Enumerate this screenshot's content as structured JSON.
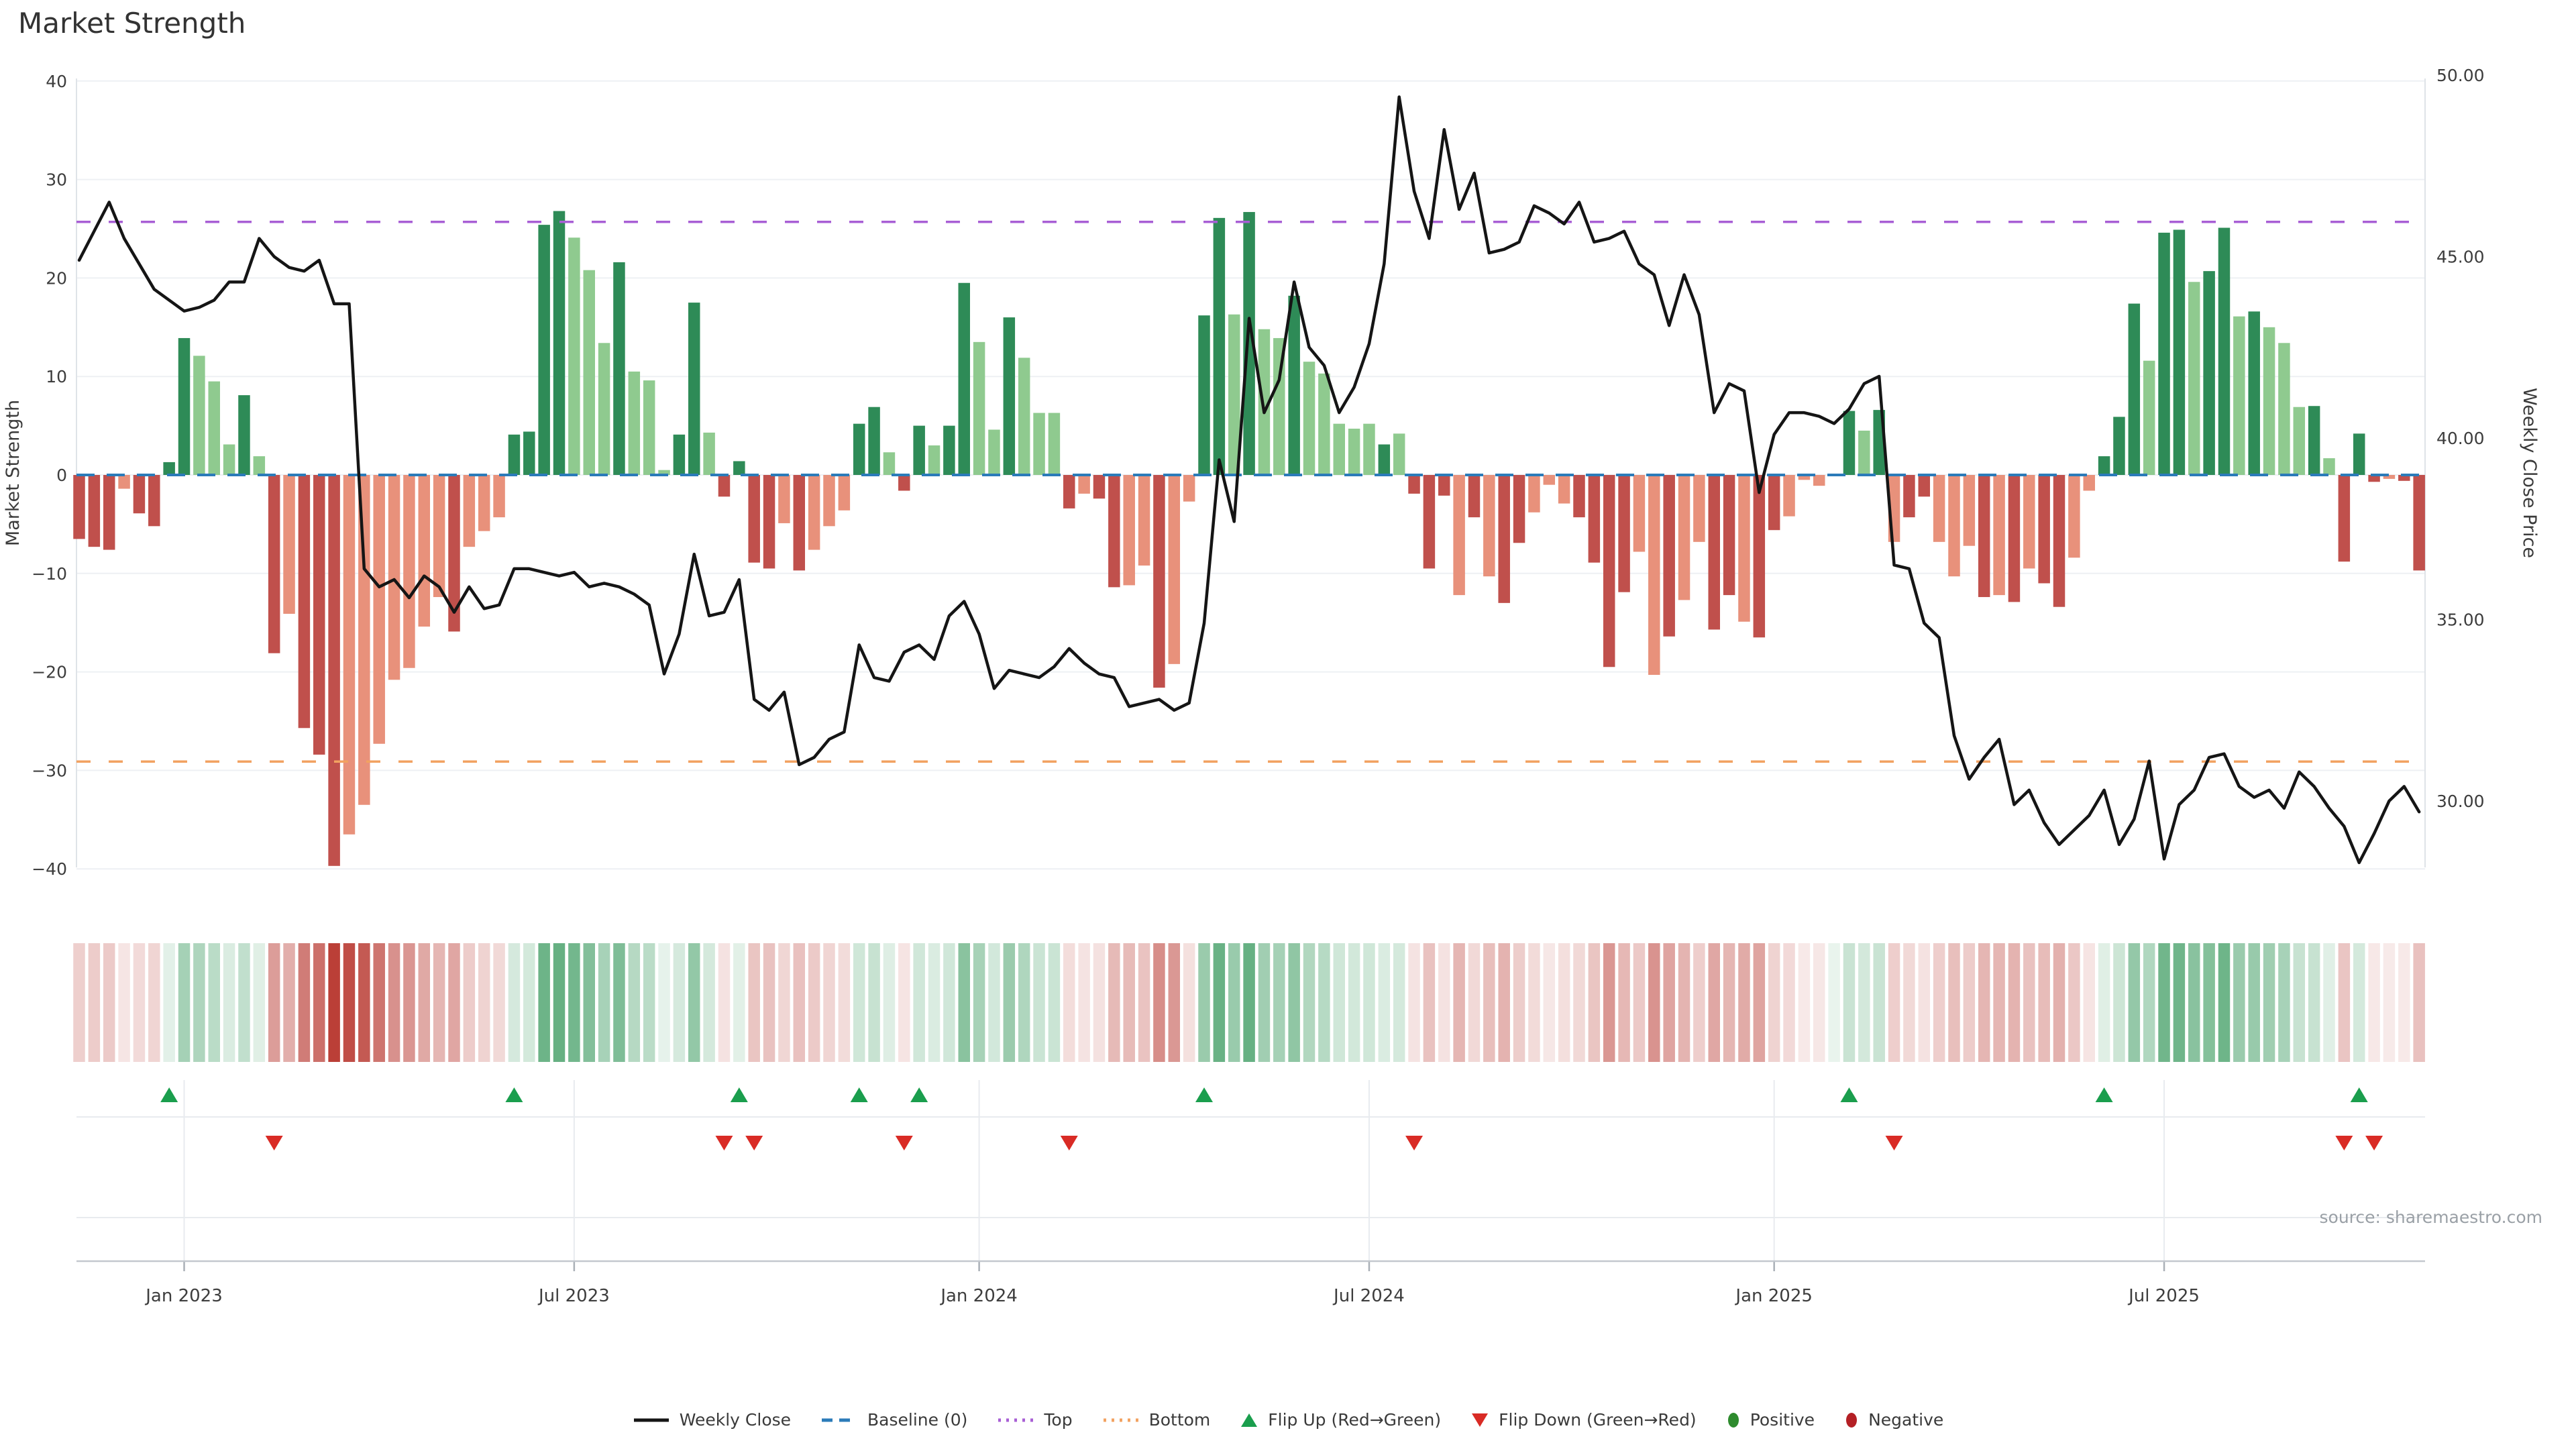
{
  "title": "Market Strength",
  "source": "source: sharemaestro.com",
  "axes": {
    "left": {
      "label": "Market Strength",
      "ticks": [
        40,
        30,
        20,
        10,
        0,
        -10,
        -20,
        -30,
        -40
      ]
    },
    "right": {
      "label": "Weekly Close Price",
      "ticks": [
        {
          "v": 50,
          "label": "50.00"
        },
        {
          "v": 45,
          "label": "45.00"
        },
        {
          "v": 40,
          "label": "40.00"
        },
        {
          "v": 35,
          "label": "35.00"
        },
        {
          "v": 30,
          "label": "30.00"
        }
      ]
    },
    "x": {
      "ticks": [
        {
          "label": "Jan 2023",
          "i": 7
        },
        {
          "label": "Jul 2023",
          "i": 33
        },
        {
          "label": "Jan 2024",
          "i": 60
        },
        {
          "label": "Jul 2024",
          "i": 86
        },
        {
          "label": "Jan 2025",
          "i": 113
        },
        {
          "label": "Jul 2025",
          "i": 139
        }
      ]
    }
  },
  "reference_lines": {
    "baseline": {
      "label": "Baseline (0)",
      "value": 0,
      "color": "#2b7bb9"
    },
    "top": {
      "label": "Top",
      "value": 25.7,
      "color": "#a85fd5"
    },
    "bottom": {
      "label": "Bottom",
      "value": -29.1,
      "color": "#f2a261"
    }
  },
  "colors": {
    "bar_pos_dark": "#2e8b57",
    "bar_pos_light": "#8fca8f",
    "bar_neg_dark": "#c0504c",
    "bar_neg_light": "#e8917b",
    "price_line": "#151515",
    "flip_up": "#1a9e4d",
    "flip_down": "#d92b25",
    "grid": "#eef0f4",
    "panel_grid": "#e8ebef",
    "axis": "#c3c8ce",
    "tick_text": "#3d3d3d",
    "heat_pos_base": "#218d4a",
    "heat_neg_base": "#b93a32"
  },
  "legend": [
    {
      "label": "Weekly Close",
      "glyph": "line",
      "color": "#151515"
    },
    {
      "label": "Baseline (0)",
      "glyph": "dashes",
      "color": "#2b7bb9"
    },
    {
      "label": "Top",
      "glyph": "dots",
      "color": "#a85fd5"
    },
    {
      "label": "Bottom",
      "glyph": "dots",
      "color": "#f2a261"
    },
    {
      "label": "Flip Up (Red→Green)",
      "glyph": "tri-up",
      "color": "#1a9e4d"
    },
    {
      "label": "Flip Down (Green→Red)",
      "glyph": "tri-down",
      "color": "#d92b25"
    },
    {
      "label": "Positive",
      "glyph": "dot",
      "color": "#2e8b2e"
    },
    {
      "label": "Negative",
      "glyph": "dot",
      "color": "#b42025"
    }
  ],
  "chart_data": {
    "type": "bar",
    "subtype": "bar+line dual-axis weekly",
    "title": "Market Strength",
    "ylabel_left": "Market Strength",
    "ylabel_right": "Weekly Close Price",
    "ylim_left": [
      -40.5,
      40.5
    ],
    "ylim_right": [
      28.2,
      50.0
    ],
    "grid": true,
    "legend_position": "bottom-center",
    "series": [
      {
        "name": "Market Strength",
        "type": "bar",
        "axis": "left",
        "values": [
          -6.5,
          -7.3,
          -7.6,
          -1.4,
          -3.9,
          -5.2,
          1.3,
          13.9,
          12.1,
          9.5,
          3.1,
          8.1,
          1.9,
          -18.1,
          -14.1,
          -25.7,
          -28.4,
          -39.7,
          -36.5,
          -33.5,
          -27.3,
          -20.8,
          -19.6,
          -15.4,
          -12.4,
          -15.9,
          -7.3,
          -5.7,
          -4.3,
          4.1,
          4.4,
          25.4,
          26.8,
          24.1,
          20.8,
          13.4,
          21.6,
          10.5,
          9.6,
          0.5,
          4.1,
          17.5,
          4.3,
          -2.2,
          1.4,
          -8.9,
          -9.5,
          -4.9,
          -9.7,
          -7.6,
          -5.2,
          -3.6,
          5.2,
          6.9,
          2.3,
          -1.6,
          5.0,
          3.0,
          5.0,
          19.5,
          13.5,
          4.6,
          16.0,
          11.9,
          6.3,
          6.3,
          -3.4,
          -1.9,
          -2.4,
          -11.4,
          -11.2,
          -9.2,
          -21.6,
          -19.2,
          -2.7,
          16.2,
          26.1,
          16.3,
          26.7,
          14.8,
          13.9,
          18.2,
          11.5,
          10.3,
          5.2,
          4.7,
          5.2,
          3.1,
          4.2,
          -1.9,
          -9.5,
          -2.1,
          -12.2,
          -4.3,
          -10.3,
          -13.0,
          -6.9,
          -3.8,
          -1.0,
          -2.9,
          -4.3,
          -8.9,
          -19.5,
          -11.9,
          -7.8,
          -20.3,
          -16.4,
          -12.7,
          -6.8,
          -15.7,
          -12.2,
          -14.9,
          -16.5,
          -5.6,
          -4.2,
          -0.5,
          -1.1,
          0.0,
          6.5,
          4.5,
          6.6,
          -6.8,
          -4.3,
          -2.2,
          -6.8,
          -10.3,
          -7.2,
          -12.4,
          -12.2,
          -12.9,
          -9.5,
          -11.0,
          -13.4,
          -8.4,
          -1.6,
          1.9,
          5.9,
          17.4,
          11.6,
          24.6,
          24.9,
          19.6,
          20.7,
          25.1,
          16.1,
          16.6,
          15.0,
          13.4,
          6.9,
          7.0,
          1.7,
          -8.8,
          4.2,
          -0.7,
          -0.4,
          -0.6,
          -9.7
        ],
        "shade": "DDDLDDDDLLLDLDLDDDLLLLLLLDLLLDDDDLLLDLLLDDLDDDDLDLLLDDLDDLDDLLDLLLDLDDLLDLLDDLDLLDLLLLLDLDDDLDLDDLLLDDDDLLDLLDDLDDLLLLDLDLDDLLLDLDLDDLLDDDLDDLDDLDLLLDLDDDLDD"
      },
      {
        "name": "Weekly Close",
        "type": "line",
        "axis": "right",
        "values": [
          44.9,
          45.7,
          46.5,
          45.5,
          44.8,
          44.1,
          43.8,
          43.5,
          43.6,
          43.8,
          44.3,
          44.3,
          45.5,
          45.0,
          44.7,
          44.6,
          44.9,
          43.7,
          43.7,
          36.4,
          35.9,
          36.1,
          35.6,
          36.2,
          35.9,
          35.2,
          35.9,
          35.3,
          35.4,
          36.4,
          36.4,
          36.3,
          36.2,
          36.3,
          35.9,
          36.0,
          35.9,
          35.7,
          35.4,
          33.5,
          34.6,
          36.8,
          35.1,
          35.2,
          36.1,
          32.8,
          32.5,
          33.0,
          31.0,
          31.2,
          31.7,
          31.9,
          34.3,
          33.4,
          33.3,
          34.1,
          34.3,
          33.9,
          35.1,
          35.5,
          34.6,
          33.1,
          33.6,
          33.5,
          33.4,
          33.7,
          34.2,
          33.8,
          33.5,
          33.4,
          32.6,
          32.7,
          32.8,
          32.5,
          32.7,
          34.9,
          39.4,
          37.7,
          43.3,
          40.7,
          41.6,
          44.3,
          42.5,
          42.0,
          40.7,
          41.4,
          42.6,
          44.8,
          49.4,
          46.8,
          45.5,
          48.5,
          46.3,
          47.3,
          45.1,
          45.2,
          45.4,
          46.4,
          46.2,
          45.9,
          46.5,
          45.4,
          45.5,
          45.7,
          44.8,
          44.5,
          43.1,
          44.5,
          43.4,
          40.7,
          41.5,
          41.3,
          38.5,
          40.1,
          40.7,
          40.7,
          40.6,
          40.4,
          40.8,
          41.5,
          41.7,
          36.5,
          36.4,
          34.9,
          34.5,
          31.8,
          30.6,
          31.2,
          31.7,
          29.9,
          30.3,
          29.4,
          28.8,
          29.2,
          29.6,
          30.3,
          28.8,
          29.5,
          31.1,
          28.4,
          29.9,
          30.3,
          31.2,
          31.3,
          30.4,
          30.1,
          30.3,
          29.8,
          30.8,
          30.4,
          29.8,
          29.3,
          28.3,
          29.1,
          30.0,
          30.4,
          29.7
        ]
      }
    ],
    "flip_up_indices": [
      6,
      29,
      44,
      52,
      56,
      75,
      118,
      135,
      152
    ],
    "flip_down_indices": [
      13,
      43,
      45,
      55,
      66,
      89,
      121,
      151,
      153
    ],
    "heat_strip": "same values as Market Strength bars, rendered as red/green intensity cells"
  }
}
